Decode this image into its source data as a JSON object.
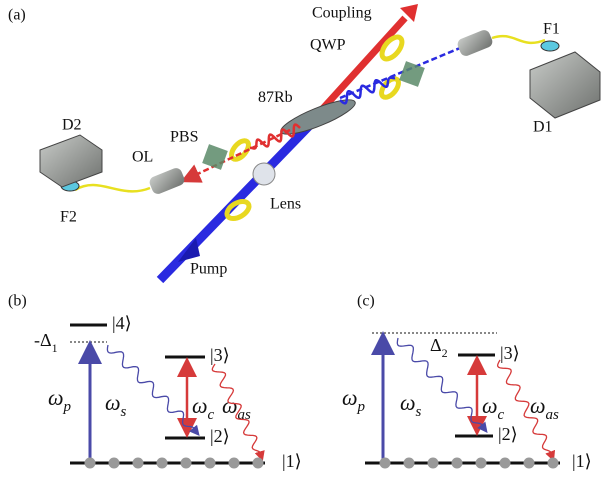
{
  "panel_a": {
    "label": "(a)",
    "coupling": "Coupling",
    "qwp": "QWP",
    "f1": "F1",
    "d1": "D1",
    "rb": {
      "mass": "87",
      "element": "Rb"
    },
    "pbs": "PBS",
    "d2": "D2",
    "ol": "OL",
    "f2": "F2",
    "lens": "Lens",
    "pump": "Pump"
  },
  "panel_b": {
    "label": "(b)",
    "detuning": {
      "symbol": "-Δ",
      "sub": "1"
    },
    "levels": [
      "|4⟩",
      "|3⟩",
      "|2⟩",
      "|1⟩"
    ],
    "transitions": [
      {
        "symbol": "ω",
        "sub": "p"
      },
      {
        "symbol": "ω",
        "sub": "s"
      },
      {
        "symbol": "ω",
        "sub": "c"
      },
      {
        "symbol": "ω",
        "sub": "as"
      }
    ]
  },
  "panel_c": {
    "label": "(c)",
    "detuning": {
      "symbol": "Δ",
      "sub": "2"
    },
    "levels": [
      "|3⟩",
      "|2⟩",
      "|1⟩"
    ],
    "transitions": [
      {
        "symbol": "ω",
        "sub": "p"
      },
      {
        "symbol": "ω",
        "sub": "s"
      },
      {
        "symbol": "ω",
        "sub": "c"
      },
      {
        "symbol": "ω",
        "sub": "as"
      }
    ]
  }
}
